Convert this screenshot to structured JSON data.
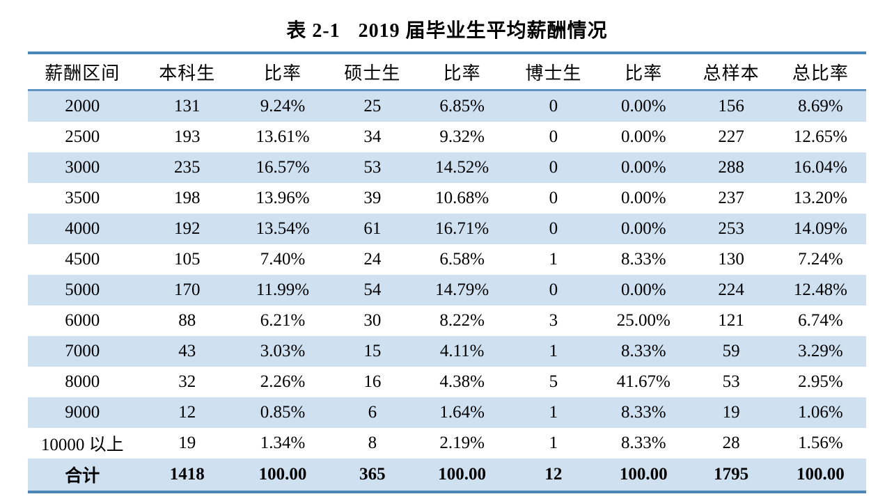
{
  "table": {
    "caption": {
      "label": "表 2-1",
      "text": "2019 届毕业生平均薪酬情况"
    },
    "columns": [
      "薪酬区间",
      "本科生",
      "比率",
      "硕士生",
      "比率",
      "博士生",
      "比率",
      "总样本",
      "总比率"
    ],
    "rows": [
      [
        "2000",
        "131",
        "9.24%",
        "25",
        "6.85%",
        "0",
        "0.00%",
        "156",
        "8.69%"
      ],
      [
        "2500",
        "193",
        "13.61%",
        "34",
        "9.32%",
        "0",
        "0.00%",
        "227",
        "12.65%"
      ],
      [
        "3000",
        "235",
        "16.57%",
        "53",
        "14.52%",
        "0",
        "0.00%",
        "288",
        "16.04%"
      ],
      [
        "3500",
        "198",
        "13.96%",
        "39",
        "10.68%",
        "0",
        "0.00%",
        "237",
        "13.20%"
      ],
      [
        "4000",
        "192",
        "13.54%",
        "61",
        "16.71%",
        "0",
        "0.00%",
        "253",
        "14.09%"
      ],
      [
        "4500",
        "105",
        "7.40%",
        "24",
        "6.58%",
        "1",
        "8.33%",
        "130",
        "7.24%"
      ],
      [
        "5000",
        "170",
        "11.99%",
        "54",
        "14.79%",
        "0",
        "0.00%",
        "224",
        "12.48%"
      ],
      [
        "6000",
        "88",
        "6.21%",
        "30",
        "8.22%",
        "3",
        "25.00%",
        "121",
        "6.74%"
      ],
      [
        "7000",
        "43",
        "3.03%",
        "15",
        "4.11%",
        "1",
        "8.33%",
        "59",
        "3.29%"
      ],
      [
        "8000",
        "32",
        "2.26%",
        "16",
        "4.38%",
        "5",
        "41.67%",
        "53",
        "2.95%"
      ],
      [
        "9000",
        "12",
        "0.85%",
        "6",
        "1.64%",
        "1",
        "8.33%",
        "19",
        "1.06%"
      ],
      [
        "10000 以上",
        "19",
        "1.34%",
        "8",
        "2.19%",
        "1",
        "8.33%",
        "28",
        "1.56%"
      ]
    ],
    "total_row": [
      "合计",
      "1418",
      "100.00",
      "365",
      "100.00",
      "12",
      "100.00",
      "1795",
      "100.00"
    ],
    "colors": {
      "stripe": "#cfe0f1",
      "rule_heavy": "#4a86b8",
      "rule_light": "#5b93c1",
      "text": "#000000"
    }
  }
}
